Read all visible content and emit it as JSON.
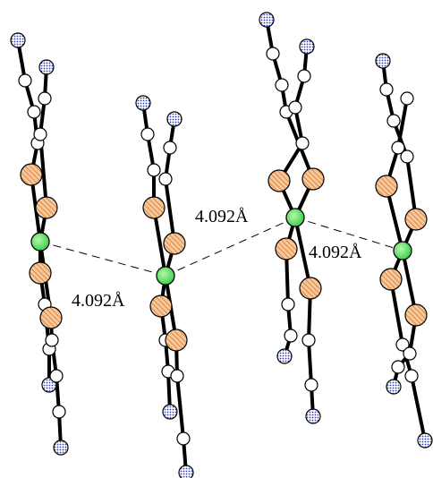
{
  "labels": [
    "4.092Å",
    "4.092Å",
    "4.092Å"
  ]
}
